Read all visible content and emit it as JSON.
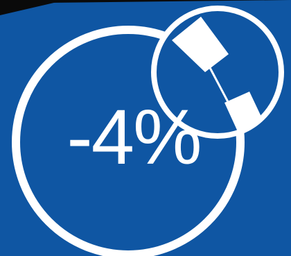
{
  "badge": {
    "discount_label": "-4%",
    "background_color": "#0f56a3",
    "foreground_color": "#ffffff",
    "corner_color": "#0a0a0a"
  },
  "graphic": {
    "main_ring": "circle-outline",
    "magnifier": "magnifier-icon"
  }
}
